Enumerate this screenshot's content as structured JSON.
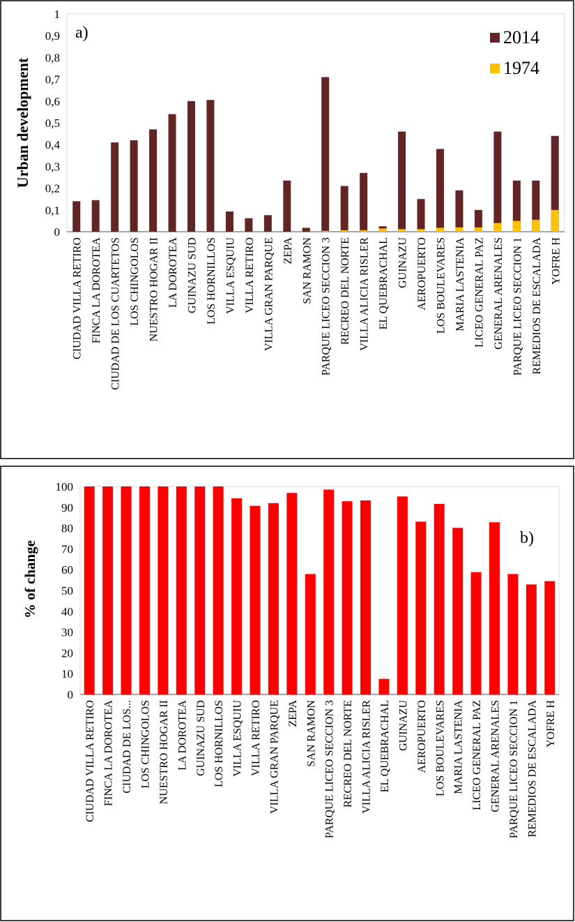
{
  "chart_data": [
    {
      "type": "bar",
      "stacked": true,
      "panel_label": "a)",
      "title": "",
      "xlabel": "",
      "ylabel": "Urban development",
      "ylim": [
        0,
        1
      ],
      "yticks": [
        "0",
        "0,1",
        "0,2",
        "0,3",
        "0,4",
        "0,5",
        "0,6",
        "0,7",
        "0,8",
        "0,9",
        "1"
      ],
      "legend_position": "top-right",
      "categories": [
        "CIUDAD VILLA RETIRO",
        "FINCA LA DOROTEA",
        "CIUDAD DE LOS CUARTETOS",
        "LOS CHINGOLOS",
        "NUESTRO HOGAR II",
        "LA DOROTEA",
        "GUINAZU SUD",
        "LOS HORNILLOS",
        "VILLA ESQUIU",
        "VILLA RETIRO",
        "VILLA GRAN PARQUE",
        "ZEPA",
        "SAN RAMON",
        "PARQUE LICEO SECCION 3",
        "RECREO DEL NORTE",
        "VILLA ALICIA RISLER",
        "EL QUEBRACHAL",
        "GUINAZU",
        "AEROPUERTO",
        "LOS BOULEVARES",
        "MARIA LASTENIA",
        "LICEO GENERAL PAZ",
        "GENERAL ARENALES",
        "PARQUE LICEO SECCION 1",
        "REMEDIOS DE ESCALADA",
        "YOFRE H"
      ],
      "series": [
        {
          "name": "2014",
          "color": "#622424",
          "values": [
            0.14,
            0.145,
            0.41,
            0.42,
            0.47,
            0.54,
            0.6,
            0.605,
            0.093,
            0.062,
            0.076,
            0.235,
            0.018,
            0.71,
            0.21,
            0.27,
            0.025,
            0.46,
            0.15,
            0.38,
            0.19,
            0.1,
            0.46,
            0.235,
            0.235,
            0.44
          ]
        },
        {
          "name": "1974",
          "color": "#FFC000",
          "values": [
            0,
            0,
            0,
            0,
            0,
            0,
            0,
            0,
            0,
            0,
            0,
            0,
            0,
            0.004,
            0.007,
            0.007,
            0.015,
            0.012,
            0.012,
            0.018,
            0.02,
            0.02,
            0.04,
            0.05,
            0.055,
            0.1
          ]
        }
      ]
    },
    {
      "type": "bar",
      "panel_label": "b)",
      "title": "",
      "xlabel": "",
      "ylabel": "% of change",
      "ylim": [
        0,
        100
      ],
      "yticks": [
        "0",
        "10",
        "20",
        "30",
        "40",
        "50",
        "60",
        "70",
        "80",
        "90",
        "100"
      ],
      "categories": [
        "CIUDAD VILLA RETIRO",
        "FINCA LA DOROTEA",
        "CIUDAD DE LOS...",
        "LOS CHINGOLOS",
        "NUESTRO HOGAR II",
        "LA DOROTEA",
        "GUINAZU SUD",
        "LOS HORNILLOS",
        "VILLA ESQUIU",
        "VILLA RETIRO",
        "VILLA GRAN PARQUE",
        "ZEPA",
        "SAN RAMON",
        "PARQUE LICEO SECCION 3",
        "RECREO DEL NORTE",
        "VILLA ALICIA RISLER",
        "EL QUEBRACHAL",
        "GUINAZU",
        "AEROPUERTO",
        "LOS BOULEVARES",
        "MARIA LASTENIA",
        "LICEO GENERAL PAZ",
        "GENERAL ARENALES",
        "PARQUE LICEO SECCION 1",
        "REMEDIOS DE ESCALADA",
        "YOFRE H"
      ],
      "series": [
        {
          "name": "% of change",
          "color": "#FF0000",
          "values": [
            100,
            100,
            100,
            100,
            100,
            100,
            100,
            100,
            94.3,
            90.7,
            92,
            96.9,
            57.9,
            98.5,
            92.9,
            93.3,
            7.5,
            95.2,
            83.1,
            91.6,
            80.1,
            58.8,
            82.8,
            57.9,
            52.9,
            54.5
          ]
        }
      ]
    }
  ]
}
